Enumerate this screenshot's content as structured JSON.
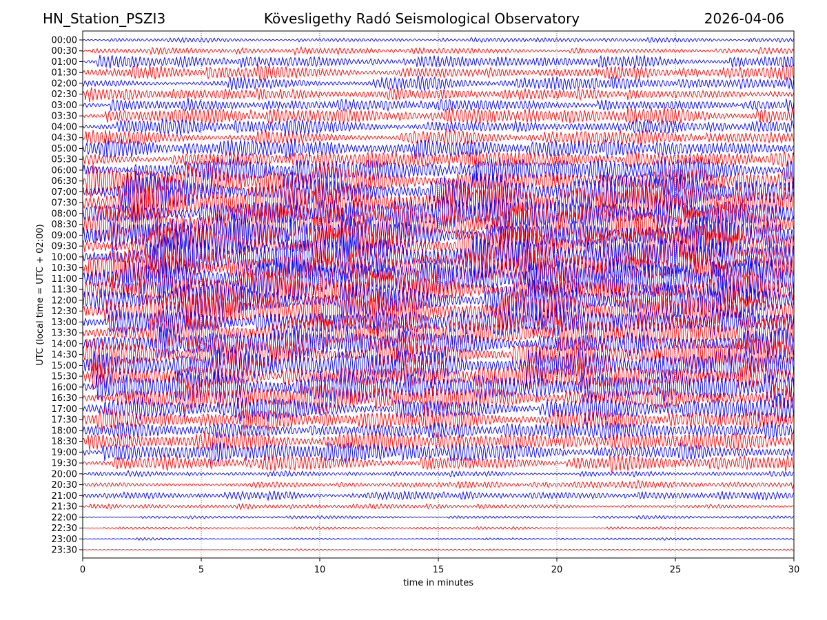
{
  "header": {
    "station": "HN_Station_PSZI3",
    "observatory": "Kövesligethy Radó Seismological Observatory",
    "date": "2026-04-06"
  },
  "chart_data": {
    "type": "line",
    "title": "Kövesligethy Radó Seismological Observatory",
    "xlabel": "time in minutes",
    "ylabel": "UTC (local time = UTC + 02:00)",
    "xlim": [
      0,
      30
    ],
    "xticks": [
      "0",
      "5",
      "10",
      "15",
      "20",
      "25",
      "30"
    ],
    "grid": "vertical dotted at 5-minute ticks",
    "colors": [
      "#0000ff",
      "#ff0000"
    ],
    "rows": [
      "00:00",
      "00:30",
      "01:00",
      "01:30",
      "02:00",
      "02:30",
      "03:00",
      "03:30",
      "04:00",
      "04:30",
      "05:00",
      "05:30",
      "06:00",
      "06:30",
      "07:00",
      "07:30",
      "08:00",
      "08:30",
      "09:00",
      "09:30",
      "10:00",
      "10:30",
      "11:00",
      "11:30",
      "12:00",
      "12:30",
      "13:00",
      "13:30",
      "14:00",
      "14:30",
      "15:00",
      "15:30",
      "16:00",
      "16:30",
      "17:00",
      "17:30",
      "18:00",
      "18:30",
      "19:00",
      "19:30",
      "20:00",
      "20:30",
      "21:00",
      "21:30",
      "22:00",
      "22:30",
      "23:00",
      "23:30"
    ],
    "relative_amplitude": [
      0.3,
      0.4,
      0.7,
      0.9,
      0.8,
      0.7,
      0.8,
      1.0,
      1.0,
      0.9,
      1.1,
      1.3,
      1.6,
      2.0,
      2.4,
      2.5,
      2.5,
      2.6,
      2.6,
      2.6,
      2.6,
      2.5,
      2.5,
      2.4,
      2.4,
      2.3,
      2.1,
      2.0,
      2.0,
      2.0,
      1.9,
      1.9,
      1.9,
      1.8,
      1.5,
      1.2,
      1.2,
      1.2,
      1.3,
      1.0,
      0.3,
      0.5,
      0.5,
      0.3,
      0.2,
      0.15,
      0.15,
      0.1
    ]
  }
}
